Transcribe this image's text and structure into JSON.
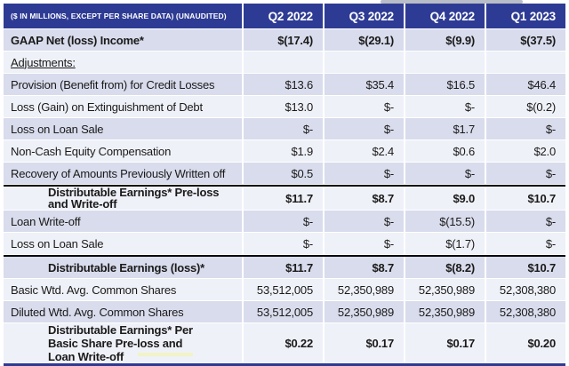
{
  "colors": {
    "header_bg": "#2e3b94",
    "header_text": "#ffffff",
    "row_blue": "#d9dcec",
    "row_light": "#eff1f8",
    "text": "#1a1a1a",
    "section_border": "#000000",
    "table_bottom_border": "#2e3b94",
    "scroll_thumb": "#b9bdc8"
  },
  "table": {
    "header": {
      "label": "($ IN MILLIONS, EXCEPT PER SHARE DATA) (UNAUDITED)",
      "columns": [
        "Q2 2022",
        "Q3 2022",
        "Q4 2022",
        "Q1 2023"
      ]
    },
    "rows": [
      {
        "label": "GAAP Net (loss) Income*",
        "values": [
          "$(17.4)",
          "$(29.1)",
          "$(9.9)",
          "$(37.5)"
        ],
        "shade": "blue",
        "bold": true
      },
      {
        "label": "Adjustments:",
        "values": [
          "",
          "",
          "",
          ""
        ],
        "shade": "light",
        "underline": true
      },
      {
        "label": "Provision (Benefit from) for Credit Losses",
        "values": [
          "$13.6",
          "$35.4",
          "$16.5",
          "$46.4"
        ],
        "shade": "blue"
      },
      {
        "label": "Loss (Gain) on Extinguishment of Debt",
        "values": [
          "$13.0",
          "$-",
          "$-",
          "$(0.2)"
        ],
        "shade": "light"
      },
      {
        "label": "Loss on Loan Sale",
        "values": [
          "$-",
          "$-",
          "$1.7",
          "$-"
        ],
        "shade": "blue"
      },
      {
        "label": "Non-Cash Equity Compensation",
        "values": [
          "$1.9",
          "$2.4",
          "$0.6",
          "$2.0"
        ],
        "shade": "light"
      },
      {
        "label": "Recovery of Amounts Previously Written off",
        "values": [
          "$0.5",
          "$-",
          "$-",
          "$-"
        ],
        "shade": "blue"
      },
      {
        "label": "Distributable Earnings* Pre-loss and Write-off",
        "values": [
          "$11.7",
          "$8.7",
          "$9.0",
          "$10.7"
        ],
        "shade": "light",
        "bold": true,
        "indent": true,
        "topBorder": true
      },
      {
        "label": "Loan Write-off",
        "values": [
          "$-",
          "$-",
          "$(15.5)",
          "$-"
        ],
        "shade": "blue"
      },
      {
        "label": "Loss on Loan Sale",
        "values": [
          "$-",
          "$-",
          "$(1.7)",
          "$-"
        ],
        "shade": "light"
      },
      {
        "label": "Distributable Earnings (loss)*",
        "values": [
          "$11.7",
          "$8.7",
          "$(8.2)",
          "$10.7"
        ],
        "shade": "blue",
        "bold": true,
        "indent": true,
        "topBorder": true
      },
      {
        "label": "Basic Wtd. Avg. Common Shares",
        "values": [
          "53,512,005",
          "52,350,989",
          "52,350,989",
          "52,308,380"
        ],
        "shade": "light"
      },
      {
        "label": "Diluted Wtd. Avg. Common Shares",
        "values": [
          "53,512,005",
          "52,350,989",
          "52,350,989",
          "52,308,380"
        ],
        "shade": "blue"
      },
      {
        "label": "Distributable Earnings* Per Basic Share Pre-loss and Loan Write-off",
        "values": [
          "$0.22",
          "$0.17",
          "$0.17",
          "$0.20"
        ],
        "shade": "light",
        "bold": true,
        "indent": true,
        "tall": true
      }
    ]
  }
}
